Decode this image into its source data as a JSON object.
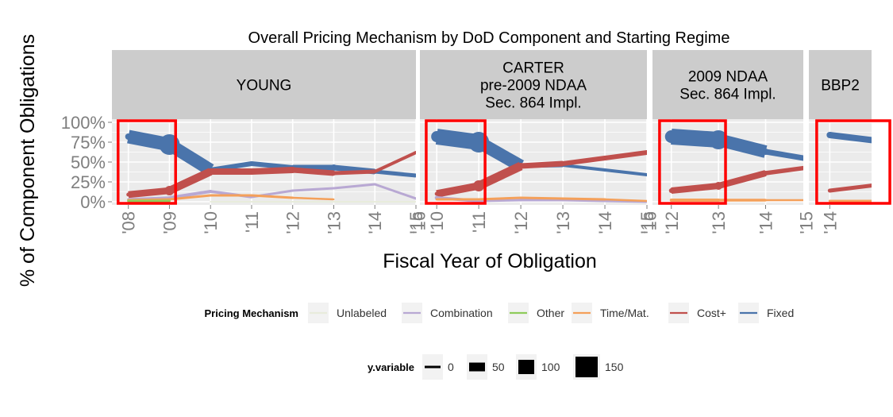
{
  "chart_data": {
    "type": "line",
    "title": "Overall Pricing Mechanism by DoD Component and Starting Regime",
    "xlabel": "Fiscal Year of Obligation",
    "ylabel": "% of Component Obligations",
    "y_ticks": [
      "0%",
      "25%",
      "50%",
      "75%",
      "100%"
    ],
    "ylim": [
      0,
      100
    ],
    "grid": true,
    "legend_placement": "bottom",
    "legend_title": "Pricing Mechanism",
    "size_legend_title": "y.variable",
    "size_legend_values": [
      0,
      50,
      100,
      150
    ],
    "colors": {
      "Unlabeled": "#e8ecdc",
      "Combination": "#b8a8d3",
      "Other": "#8fcc5b",
      "Time/Mat.": "#f4a05a",
      "Cost+": "#c0504d",
      "Fixed": "#4a74ab",
      "highlight": "#ff0000",
      "strip": "#cccccc",
      "panel": "#ebebeb"
    },
    "legend_series": [
      "Unlabeled",
      "Combination",
      "Other",
      "Time/Mat.",
      "Cost+",
      "Fixed"
    ],
    "panels": [
      {
        "label": "YOUNG",
        "x_ticks": [
          "'08",
          "'09",
          "'10",
          "'11",
          "'12",
          "'13",
          "'14",
          "'15"
        ],
        "xlim": [
          2007.6,
          2015.0
        ],
        "highlight": [
          2007.75,
          2009.15
        ],
        "series": [
          {
            "name": "Fixed",
            "x": [
              2008,
              2009,
              2010,
              2011,
              2012,
              2013,
              2014,
              2015
            ],
            "y": [
              82,
              72,
              40,
              48,
              43,
              43,
              38,
              33
            ],
            "w": [
              8,
              26,
              6,
              6,
              6,
              8,
              6,
              4
            ]
          },
          {
            "name": "Cost+",
            "x": [
              2008,
              2009,
              2010,
              2011,
              2012,
              2013,
              2014,
              2015
            ],
            "y": [
              9,
              14,
              38,
              38,
              40,
              36,
              38,
              62
            ],
            "w": [
              5,
              12,
              8,
              8,
              8,
              6,
              4,
              4
            ]
          },
          {
            "name": "Combination",
            "x": [
              2008,
              2009,
              2010,
              2011,
              2012,
              2013,
              2014,
              2015
            ],
            "y": [
              3,
              5,
              13,
              6,
              14,
              17,
              22,
              4
            ],
            "w": [
              3,
              4,
              4,
              3,
              3,
              3,
              3,
              3
            ]
          },
          {
            "name": "Time/Mat.",
            "x": [
              2008,
              2009,
              2010,
              2011,
              2012,
              2013
            ],
            "y": [
              2,
              3,
              8,
              8,
              5,
              3
            ],
            "w": [
              3,
              3,
              3,
              3,
              3,
              2
            ]
          },
          {
            "name": "Other",
            "x": [
              2008,
              2009
            ],
            "y": [
              1,
              1
            ],
            "w": [
              3,
              3
            ]
          },
          {
            "name": "Unlabeled",
            "x": [
              2010,
              2015
            ],
            "y": [
              0,
              0
            ],
            "w": [
              2,
              2
            ]
          }
        ]
      },
      {
        "label": "CARTER\npre-2009 NDAA\nSec. 864 Impl.",
        "x_ticks": [
          "'10",
          "'11",
          "'12",
          "'13",
          "'14",
          "'15"
        ],
        "xlim": [
          2009.6,
          2015.0
        ],
        "highlight": [
          2009.75,
          2011.15
        ],
        "series": [
          {
            "name": "Fixed",
            "x": [
              2010,
              2011,
              2012,
              2013,
              2014,
              2015
            ],
            "y": [
              82,
              75,
              45,
              46,
              40,
              34
            ],
            "w": [
              14,
              26,
              6,
              4,
              4,
              4
            ]
          },
          {
            "name": "Cost+",
            "x": [
              2010,
              2011,
              2012,
              2013,
              2014,
              2015
            ],
            "y": [
              10,
              20,
              45,
              48,
              55,
              62
            ],
            "w": [
              5,
              14,
              8,
              6,
              6,
              6
            ]
          },
          {
            "name": "Combination",
            "x": [
              2010,
              2011,
              2012,
              2013,
              2014,
              2015
            ],
            "y": [
              5,
              1,
              2,
              2,
              1,
              0
            ],
            "w": [
              5,
              3,
              3,
              3,
              3,
              3
            ]
          },
          {
            "name": "Time/Mat.",
            "x": [
              2010,
              2011,
              2012,
              2013,
              2014,
              2015
            ],
            "y": [
              3,
              3,
              5,
              4,
              3,
              1
            ],
            "w": [
              3,
              3,
              3,
              3,
              3,
              2
            ]
          }
        ]
      },
      {
        "label": "2009 NDAA\nSec. 864 Impl.",
        "x_ticks": [
          "'12",
          "'13",
          "'14"
        ],
        "xlim": [
          2011.6,
          2014.8
        ],
        "highlight": [
          2011.75,
          2013.15
        ],
        "series": [
          {
            "name": "Fixed",
            "x": [
              2012,
              2013,
              2014,
              2015
            ],
            "y": [
              82,
              78,
              63,
              53
            ],
            "w": [
              16,
              24,
              8,
              6
            ]
          },
          {
            "name": "Cost+",
            "x": [
              2012,
              2013,
              2014,
              2015
            ],
            "y": [
              14,
              20,
              36,
              44
            ],
            "w": [
              6,
              10,
              6,
              5
            ]
          },
          {
            "name": "Time/Mat.",
            "x": [
              2012,
              2013,
              2014,
              2015
            ],
            "y": [
              2,
              2,
              2,
              2
            ],
            "w": [
              4,
              4,
              3,
              2
            ]
          }
        ]
      },
      {
        "label": "BBP2",
        "x_ticks": [
          "'14"
        ],
        "xlim": [
          2013.6,
          2014.8
        ],
        "highlight": [
          2013.75,
          2015.15
        ],
        "series": [
          {
            "name": "Fixed",
            "x": [
              2014,
              2015
            ],
            "y": [
              84,
              76
            ],
            "w": [
              8,
              8
            ]
          },
          {
            "name": "Cost+",
            "x": [
              2014,
              2015
            ],
            "y": [
              14,
              22
            ],
            "w": [
              5,
              5
            ]
          },
          {
            "name": "Time/Mat.",
            "x": [
              2014,
              2015
            ],
            "y": [
              1,
              1
            ],
            "w": [
              3,
              3
            ]
          }
        ]
      }
    ]
  }
}
